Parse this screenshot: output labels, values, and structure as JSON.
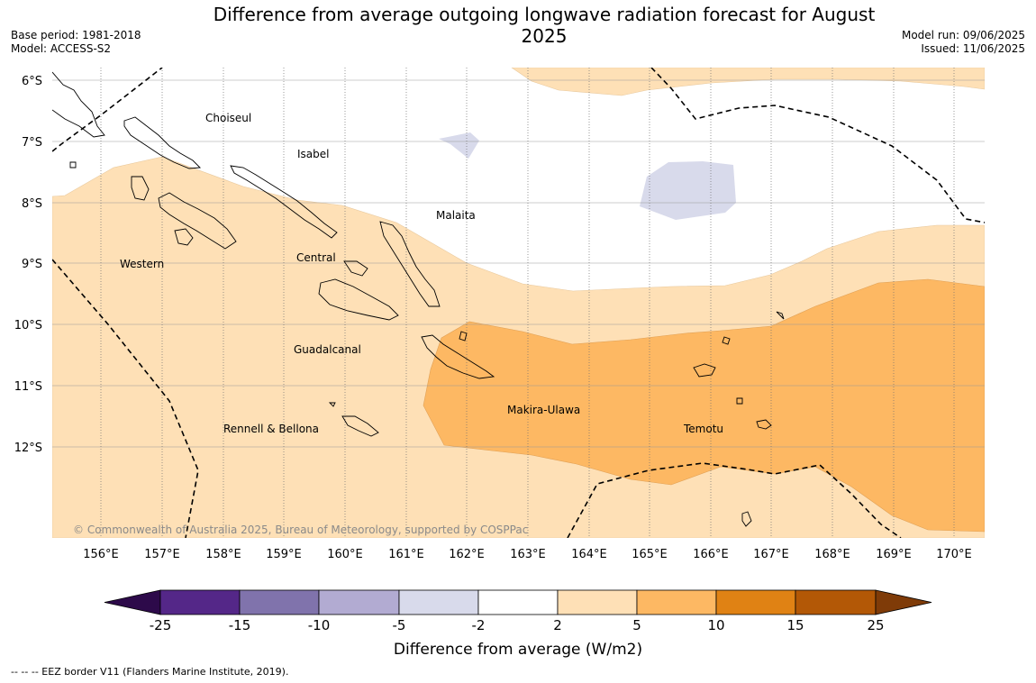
{
  "title": "Difference from average outgoing longwave radiation forecast for August 2025",
  "base_period": "Base period: 1981-2018",
  "model": "Model: ACCESS-S2",
  "model_run": "Model run: 09/06/2025",
  "issued": "Issued: 11/06/2025",
  "latitude_labels": [
    "6°S",
    "7°S",
    "8°S",
    "9°S",
    "10°S",
    "11°S",
    "12°S"
  ],
  "longitude_labels": [
    "156°E",
    "157°E",
    "158°E",
    "159°E",
    "160°E",
    "161°E",
    "162°E",
    "163°E",
    "164°E",
    "165°E",
    "166°E",
    "167°E",
    "168°E",
    "169°E",
    "170°E"
  ],
  "regions": [
    {
      "name": "Choiseul"
    },
    {
      "name": "Isabel"
    },
    {
      "name": "Malaita"
    },
    {
      "name": "Western"
    },
    {
      "name": "Central"
    },
    {
      "name": "Guadalcanal"
    },
    {
      "name": "Makira-Ulawa"
    },
    {
      "name": "Rennell & Bellona"
    },
    {
      "name": "Temotu"
    }
  ],
  "copyright": "© Commonwealth of Australia 2025, Bureau of Meteorology, supported by COSPPac",
  "colorbar": {
    "title": "Difference from average (W/m2)",
    "ticks": [
      "-25",
      "-15",
      "-10",
      "-5",
      "-2",
      "2",
      "5",
      "10",
      "15",
      "25"
    ],
    "colors": {
      "below_min": "#2d0a4a",
      "neg_25_15": "#542788",
      "neg_15_10": "#8073ac",
      "neg_10_5": "#b2abd2",
      "neg_5_2": "#d8daeb",
      "neutral": "#ffffff",
      "pos_2_5": "#fee0b6",
      "pos_5_10": "#fdb863",
      "pos_10_15": "#e08214",
      "pos_15_25": "#b35806",
      "above_max": "#7f3b08"
    }
  },
  "legend_note": "-- -- -- EEZ border V11 (Flanders Marine Institute, 2019)."
}
